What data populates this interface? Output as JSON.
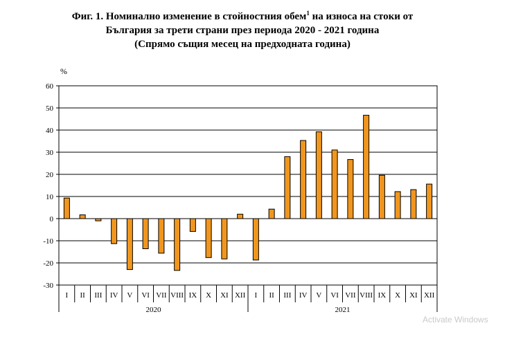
{
  "title": {
    "line1_a": "Фиг. 1. Номинално изменение в стойностния обем",
    "line1_sup": "1",
    "line1_b": " на износа на стоки от",
    "line2": "България за трети страни през периода 2020 - 2021 година",
    "line3": "(Спрямо същия месец на предходната година)"
  },
  "watermark": "Activate Windows",
  "chart_data": {
    "type": "bar",
    "ylabel": "%",
    "ylim": [
      -30,
      60
    ],
    "yticks": [
      -30,
      -20,
      -10,
      0,
      10,
      20,
      30,
      40,
      50,
      60
    ],
    "grid": true,
    "bar_color": "#f0961e",
    "categories": [
      "I",
      "II",
      "III",
      "IV",
      "V",
      "VI",
      "VII",
      "VIII",
      "IX",
      "X",
      "XI",
      "XII",
      "I",
      "II",
      "III",
      "IV",
      "V",
      "VI",
      "VII",
      "VIII",
      "IX",
      "X",
      "XI",
      "XII"
    ],
    "groups": [
      {
        "label": "2020",
        "count": 12
      },
      {
        "label": "2021",
        "count": 12
      }
    ],
    "values": [
      9.3,
      1.7,
      -1.0,
      -11.3,
      -23.0,
      -13.6,
      -15.6,
      -23.4,
      -5.8,
      -17.6,
      -18.2,
      2.0,
      -18.7,
      4.3,
      28.0,
      35.3,
      39.2,
      31.0,
      26.7,
      46.7,
      19.6,
      12.2,
      13.1,
      15.6
    ]
  }
}
